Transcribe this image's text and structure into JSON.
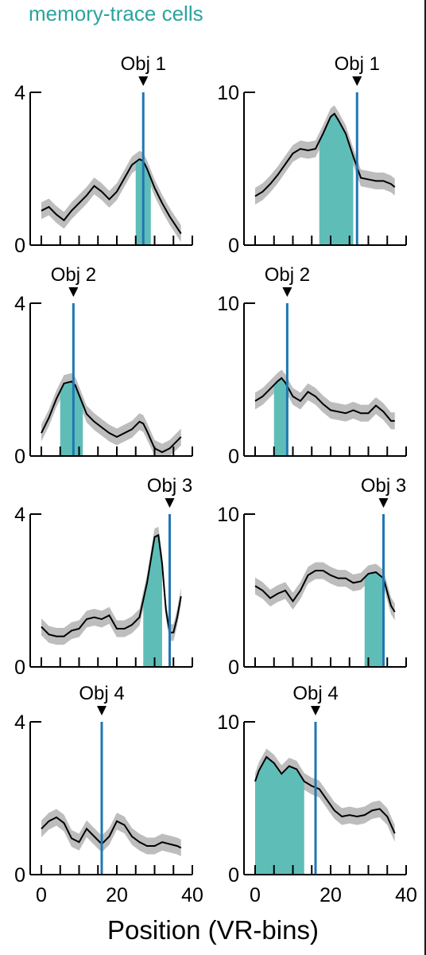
{
  "header": {
    "title": "memory-trace cells"
  },
  "xlabel": "Position (VR-bins)",
  "colors": {
    "trace": "#000000",
    "band": "#bdbdbd",
    "fill": "#5fbdb8",
    "marker": "#1f77b4",
    "header": "#2aa49d"
  },
  "chart_data": [
    {
      "type": "line",
      "row": 0,
      "col": 0,
      "ylim": [
        0,
        4
      ],
      "yticks": [
        "0",
        "4"
      ],
      "xlim": [
        0,
        40
      ],
      "object": "Obj 1",
      "object_x": 27,
      "fill_range": [
        25,
        29
      ],
      "x": [
        0,
        2,
        4,
        6,
        8,
        10,
        12,
        14,
        16,
        18,
        20,
        22,
        24,
        26,
        27,
        28,
        30,
        32,
        34,
        36,
        37
      ],
      "y": [
        0.9,
        1.0,
        0.8,
        0.65,
        0.9,
        1.1,
        1.3,
        1.55,
        1.4,
        1.2,
        1.4,
        1.75,
        2.1,
        2.25,
        2.2,
        2.0,
        1.5,
        1.1,
        0.75,
        0.45,
        0.3
      ]
    },
    {
      "type": "line",
      "row": 0,
      "col": 1,
      "ylim": [
        0,
        10
      ],
      "yticks": [
        "0",
        "10"
      ],
      "xlim": [
        0,
        40
      ],
      "object": "Obj 1",
      "object_x": 27,
      "fill_range": [
        17,
        26
      ],
      "x": [
        0,
        2,
        4,
        6,
        8,
        10,
        12,
        14,
        16,
        18,
        20,
        21,
        22,
        24,
        26,
        28,
        30,
        32,
        34,
        36,
        37
      ],
      "y": [
        3.2,
        3.5,
        4.0,
        4.6,
        5.3,
        6.0,
        6.3,
        6.2,
        6.3,
        7.3,
        8.4,
        8.6,
        8.2,
        7.3,
        5.8,
        4.4,
        4.3,
        4.2,
        4.2,
        4.0,
        3.8
      ]
    },
    {
      "type": "line",
      "row": 1,
      "col": 0,
      "ylim": [
        0,
        4
      ],
      "yticks": [
        "0",
        "4"
      ],
      "xlim": [
        0,
        40
      ],
      "object": "Obj 2",
      "object_x": 8.5,
      "fill_range": [
        5,
        11
      ],
      "x": [
        0,
        2,
        4,
        6,
        8,
        9,
        10,
        12,
        14,
        16,
        18,
        20,
        22,
        24,
        26,
        27,
        28,
        30,
        32,
        34,
        36,
        37
      ],
      "y": [
        0.6,
        1.0,
        1.5,
        1.9,
        1.95,
        1.85,
        1.6,
        1.1,
        0.9,
        0.75,
        0.6,
        0.5,
        0.6,
        0.7,
        0.9,
        0.85,
        0.65,
        0.2,
        0.1,
        0.2,
        0.4,
        0.5
      ]
    },
    {
      "type": "line",
      "row": 1,
      "col": 1,
      "ylim": [
        0,
        10
      ],
      "yticks": [
        "0",
        "10"
      ],
      "xlim": [
        0,
        40
      ],
      "object": "Obj 2",
      "object_x": 8.5,
      "fill_range": [
        5,
        8.5
      ],
      "x": [
        0,
        2,
        4,
        6,
        7,
        8,
        10,
        12,
        14,
        16,
        18,
        20,
        22,
        24,
        26,
        28,
        30,
        32,
        34,
        36,
        37
      ],
      "y": [
        3.6,
        3.9,
        4.4,
        4.9,
        5.1,
        4.8,
        3.9,
        3.6,
        4.2,
        3.9,
        3.4,
        3.0,
        2.9,
        2.8,
        3.0,
        2.8,
        2.8,
        3.3,
        2.9,
        2.3,
        2.3
      ]
    },
    {
      "type": "line",
      "row": 2,
      "col": 0,
      "ylim": [
        0,
        4
      ],
      "yticks": [
        "0",
        "4"
      ],
      "xlim": [
        0,
        40
      ],
      "object": "Obj 3",
      "object_x": 34,
      "fill_range": [
        27,
        32
      ],
      "x": [
        0,
        2,
        4,
        6,
        8,
        10,
        12,
        14,
        16,
        18,
        20,
        22,
        24,
        26,
        28,
        30,
        31,
        32,
        33,
        34,
        35,
        36,
        37
      ],
      "y": [
        1.05,
        0.85,
        0.8,
        0.8,
        0.95,
        1.0,
        1.25,
        1.3,
        1.25,
        1.35,
        1.0,
        1.0,
        1.1,
        1.3,
        2.2,
        3.4,
        3.45,
        2.7,
        1.5,
        0.9,
        0.9,
        1.3,
        1.85
      ]
    },
    {
      "type": "line",
      "row": 2,
      "col": 1,
      "ylim": [
        0,
        10
      ],
      "yticks": [
        "0",
        "10"
      ],
      "xlim": [
        0,
        40
      ],
      "object": "Obj 3",
      "object_x": 34,
      "fill_range": [
        29,
        34
      ],
      "x": [
        0,
        2,
        4,
        6,
        8,
        10,
        12,
        14,
        16,
        18,
        20,
        22,
        24,
        26,
        28,
        30,
        32,
        34,
        36,
        37
      ],
      "y": [
        5.3,
        5.0,
        4.5,
        4.8,
        5.0,
        4.3,
        5.0,
        6.0,
        6.3,
        6.3,
        6.0,
        5.8,
        5.8,
        5.5,
        5.6,
        6.1,
        6.2,
        5.8,
        4.0,
        3.6
      ]
    },
    {
      "type": "line",
      "row": 3,
      "col": 0,
      "ylim": [
        0,
        4
      ],
      "yticks": [
        "0",
        "4"
      ],
      "xlim": [
        0,
        40
      ],
      "object": "Obj 4",
      "object_x": 16,
      "fill_range": null,
      "x": [
        0,
        2,
        4,
        6,
        8,
        10,
        12,
        14,
        16,
        18,
        20,
        22,
        24,
        26,
        28,
        30,
        32,
        34,
        36,
        37
      ],
      "y": [
        1.2,
        1.4,
        1.5,
        1.35,
        0.95,
        0.85,
        1.2,
        1.0,
        0.8,
        1.0,
        1.4,
        1.3,
        1.0,
        0.85,
        0.75,
        0.75,
        0.85,
        0.8,
        0.75,
        0.7
      ]
    },
    {
      "type": "line",
      "row": 3,
      "col": 1,
      "ylim": [
        0,
        10
      ],
      "yticks": [
        "0",
        "10"
      ],
      "xlim": [
        0,
        40
      ],
      "object": "Obj 4",
      "object_x": 16,
      "fill_range": [
        0,
        13
      ],
      "x": [
        0,
        1,
        3,
        5,
        7,
        9,
        11,
        13,
        15,
        17,
        19,
        21,
        23,
        25,
        27,
        29,
        31,
        33,
        35,
        37
      ],
      "y": [
        6.1,
        6.8,
        7.7,
        7.3,
        6.6,
        7.1,
        6.9,
        6.1,
        5.8,
        5.6,
        4.9,
        4.2,
        3.8,
        3.9,
        3.8,
        3.9,
        4.2,
        4.3,
        3.8,
        2.7
      ]
    }
  ],
  "x_axis": {
    "ticks": [
      "0",
      "20",
      "40"
    ]
  }
}
